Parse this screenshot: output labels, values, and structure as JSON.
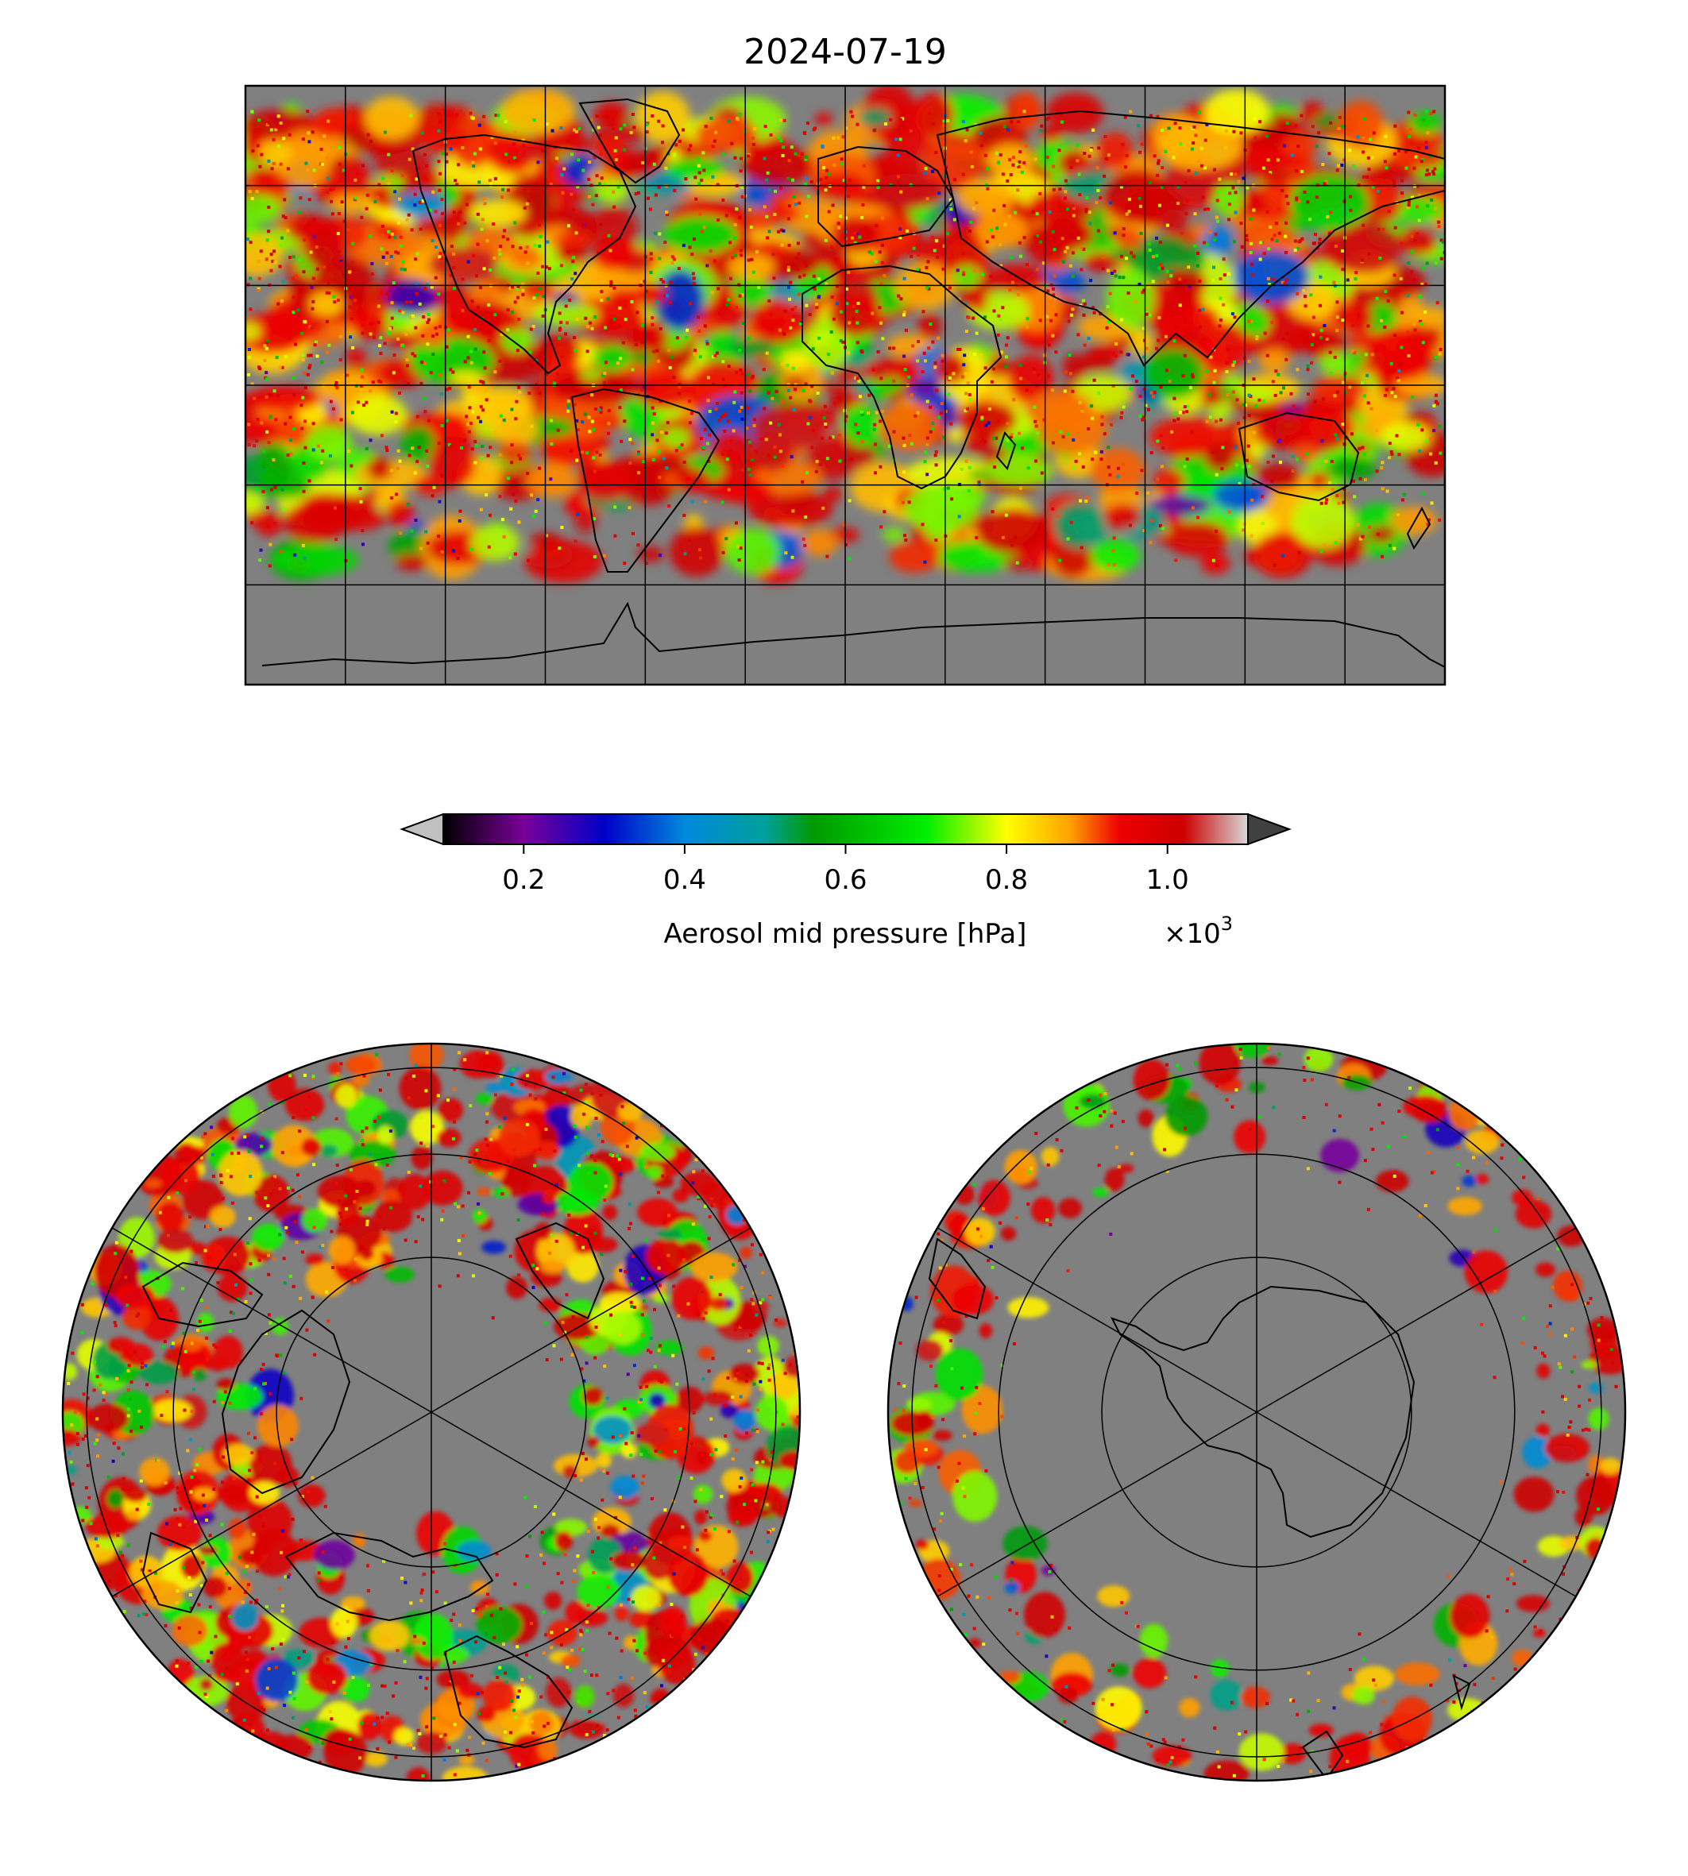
{
  "title": "2024-07-19",
  "colorbar": {
    "label": "Aerosol mid pressure [hPa]",
    "multiplier_base": "×10",
    "multiplier_exp": "3",
    "range": [
      0.1,
      1.1
    ],
    "ticks": [
      {
        "value": 0.2,
        "label": "0.2"
      },
      {
        "value": 0.4,
        "label": "0.4"
      },
      {
        "value": 0.6,
        "label": "0.6"
      },
      {
        "value": 0.8,
        "label": "0.8"
      },
      {
        "value": 1.0,
        "label": "1.0"
      }
    ],
    "extend_min_color": "#c0c0c0",
    "extend_max_color": "#404040",
    "colormap_stops": [
      {
        "value": 0.1,
        "color": "#000000"
      },
      {
        "value": 0.2,
        "color": "#7a0099"
      },
      {
        "value": 0.3,
        "color": "#0000c8"
      },
      {
        "value": 0.4,
        "color": "#0088dd"
      },
      {
        "value": 0.5,
        "color": "#00a09a"
      },
      {
        "value": 0.56,
        "color": "#009900"
      },
      {
        "value": 0.7,
        "color": "#00ee00"
      },
      {
        "value": 0.8,
        "color": "#ffff00"
      },
      {
        "value": 0.88,
        "color": "#ffa000"
      },
      {
        "value": 0.94,
        "color": "#ee0000"
      },
      {
        "value": 1.02,
        "color": "#cc0000"
      },
      {
        "value": 1.1,
        "color": "#d8d8d8"
      }
    ]
  },
  "maps": {
    "background_color": "#808080",
    "global": {
      "projection": "equirectangular",
      "lon_range": [
        -180,
        180
      ],
      "lat_range": [
        -90,
        90
      ],
      "grid_step_deg": 30
    },
    "north_polar": {
      "projection": "polar stereographic",
      "hemisphere": "north"
    },
    "south_polar": {
      "projection": "polar stereographic",
      "hemisphere": "south"
    }
  }
}
